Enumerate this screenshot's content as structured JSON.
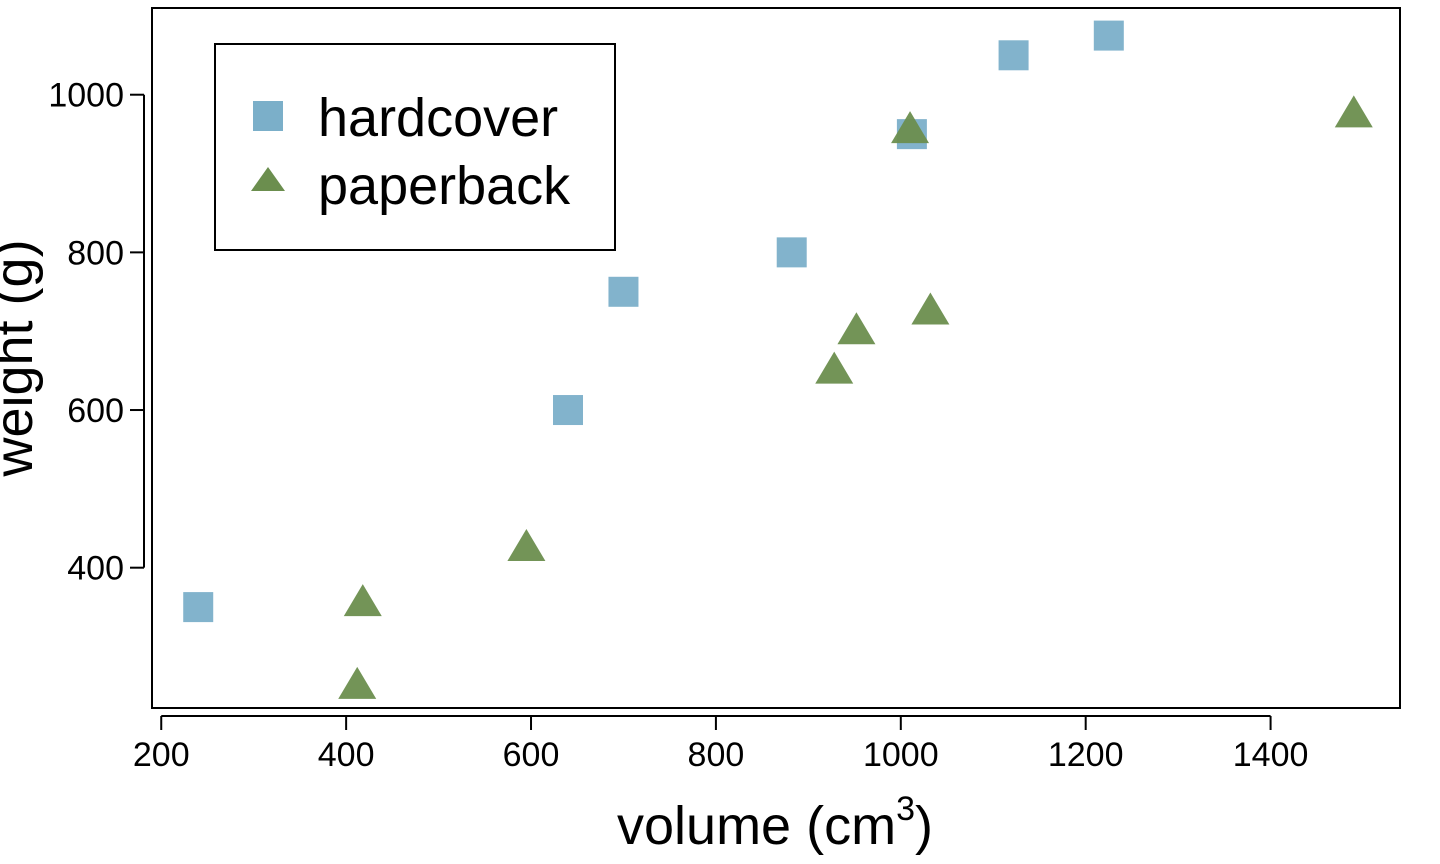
{
  "chart_data": {
    "type": "scatter",
    "title": "",
    "xlabel": "volume (cm",
    "xlabel_superscript": "3",
    "xlabel_suffix": ")",
    "ylabel": "weight (g)",
    "xlim": [
      190,
      1540
    ],
    "ylim": [
      222,
      1110
    ],
    "xticks": [
      200,
      400,
      600,
      800,
      1000,
      1200,
      1400
    ],
    "yticks": [
      400,
      600,
      800,
      1000
    ],
    "grid": false,
    "legend_position": "top-left",
    "series": [
      {
        "name": "hardcover",
        "marker": "square",
        "color": "#7BAFC9",
        "points": [
          {
            "x": 240,
            "y": 350
          },
          {
            "x": 640,
            "y": 600
          },
          {
            "x": 700,
            "y": 750
          },
          {
            "x": 882,
            "y": 800
          },
          {
            "x": 1012,
            "y": 950
          },
          {
            "x": 1122,
            "y": 1050
          },
          {
            "x": 1225,
            "y": 1075
          }
        ]
      },
      {
        "name": "paperback",
        "marker": "triangle",
        "color": "#6B8E4E",
        "points": [
          {
            "x": 412,
            "y": 250
          },
          {
            "x": 418,
            "y": 355
          },
          {
            "x": 595,
            "y": 425
          },
          {
            "x": 928,
            "y": 650
          },
          {
            "x": 952,
            "y": 700
          },
          {
            "x": 1010,
            "y": 955
          },
          {
            "x": 1032,
            "y": 725
          },
          {
            "x": 1490,
            "y": 975
          }
        ]
      }
    ]
  }
}
